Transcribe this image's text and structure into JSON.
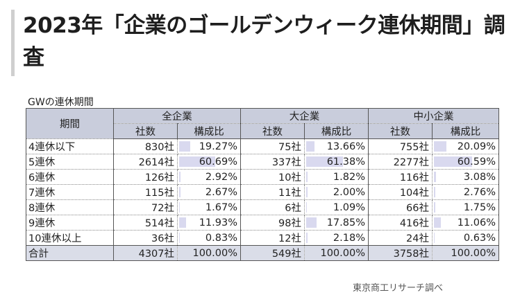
{
  "page": {
    "title": "2023年「企業のゴールデンウィーク連休期間」調査",
    "caption": "GWの連休期間",
    "source": "東京商工リサーチ調べ"
  },
  "table": {
    "row_header": "期間",
    "groups": [
      "全企業",
      "大企業",
      "中小企業"
    ],
    "sub_headers": [
      "社数",
      "構成比"
    ],
    "rows": [
      {
        "label": "4連休以下",
        "cells": [
          "830社",
          "19.27%",
          "75社",
          "13.66%",
          "755社",
          "20.09%"
        ]
      },
      {
        "label": "5連休",
        "cells": [
          "2614社",
          "60.69%",
          "337社",
          "61.38%",
          "2277社",
          "60.59%"
        ]
      },
      {
        "label": "6連休",
        "cells": [
          "126社",
          "2.92%",
          "10社",
          "1.82%",
          "116社",
          "3.08%"
        ]
      },
      {
        "label": "7連休",
        "cells": [
          "115社",
          "2.67%",
          "11社",
          "2.00%",
          "104社",
          "2.76%"
        ]
      },
      {
        "label": "8連休",
        "cells": [
          "72社",
          "1.67%",
          "6社",
          "1.09%",
          "66社",
          "1.75%"
        ]
      },
      {
        "label": "9連休",
        "cells": [
          "514社",
          "11.93%",
          "98社",
          "17.85%",
          "416社",
          "11.06%"
        ]
      },
      {
        "label": "10連休以上",
        "cells": [
          "36社",
          "0.83%",
          "12社",
          "2.18%",
          "24社",
          "0.63%"
        ]
      }
    ],
    "total": {
      "label": "合計",
      "cells": [
        "4307社",
        "100.00%",
        "549社",
        "100.00%",
        "3758社",
        "100.00%"
      ]
    },
    "bar_color": "#d9d9ef",
    "header_color": "#c9cddc"
  }
}
